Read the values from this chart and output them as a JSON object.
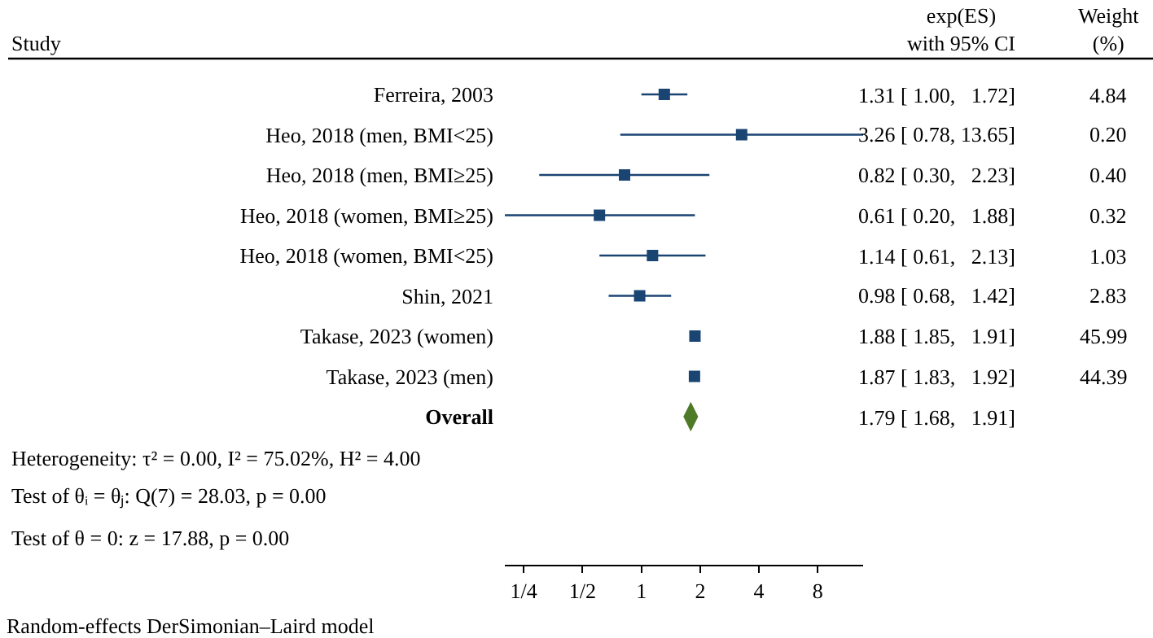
{
  "chart_data": {
    "type": "scatter",
    "orientation": "horizontal",
    "log": "x",
    "grid": false,
    "categories": [
      "Ferreira, 2003",
      "Heo, 2018 (men, BMI<25)",
      "Heo, 2018 (men, BMI≥25)",
      "Heo, 2018 (women, BMI≥25)",
      "Heo, 2018 (women, BMI<25)",
      "Shin, 2021",
      "Takase, 2023 (women)",
      "Takase, 2023 (men)",
      "Overall"
    ],
    "xlim": [
      0.2,
      13.65
    ],
    "xticks": [
      {
        "value": 0.25,
        "label": "1/4"
      },
      {
        "value": 0.5,
        "label": "1/2"
      },
      {
        "value": 1,
        "label": "1"
      },
      {
        "value": 2,
        "label": "2"
      },
      {
        "value": 4,
        "label": "4"
      },
      {
        "value": 8,
        "label": "8"
      }
    ],
    "series": [
      {
        "color": "#1a4472",
        "marker": "square",
        "values": [
          1.31,
          3.26,
          0.82,
          0.61,
          1.14,
          0.98,
          1.88,
          1.87,
          null
        ],
        "errors": [
          [
            1.0,
            1.72
          ],
          [
            0.78,
            13.65
          ],
          [
            0.3,
            2.23
          ],
          [
            0.2,
            1.88
          ],
          [
            0.61,
            2.13
          ],
          [
            0.68,
            1.42
          ],
          [
            1.85,
            1.91
          ],
          [
            1.83,
            1.92
          ],
          null
        ]
      },
      {
        "color": "#4f7a28",
        "marker": "diamond",
        "values": [
          null,
          null,
          null,
          null,
          null,
          null,
          null,
          null,
          1.79
        ],
        "errors": [
          null,
          null,
          null,
          null,
          null,
          null,
          null,
          null,
          [
            1.68,
            1.91
          ]
        ]
      }
    ],
    "annotations": [
      "Study",
      "exp(ES)\nwith 95% CI",
      "Weight\n(%)",
      "1.31 [ 1.00,   1.72]",
      "3.26 [ 0.78, 13.65]",
      "0.82 [ 0.30,   2.23]",
      "0.61 [ 0.20,   1.88]",
      "1.14 [ 0.61,   2.13]",
      "0.98 [ 0.68,   1.42]",
      "1.88 [ 1.85,   1.91]",
      "1.87 [ 1.83,   1.92]",
      "1.79 [ 1.68,   1.91]",
      "4.84",
      "0.20",
      "0.40",
      "0.32",
      "1.03",
      "2.83",
      "45.99",
      "44.39",
      "Heterogeneity: τ² = 0.00, I² = 75.02%, H² = 4.00",
      "Test of θᵢ = θⱼ: Q(7) = 28.03, p = 0.00",
      "Test of θ = 0: z = 17.88, p = 0.00",
      "Random-effects DerSimonian–Laird model"
    ]
  }
}
